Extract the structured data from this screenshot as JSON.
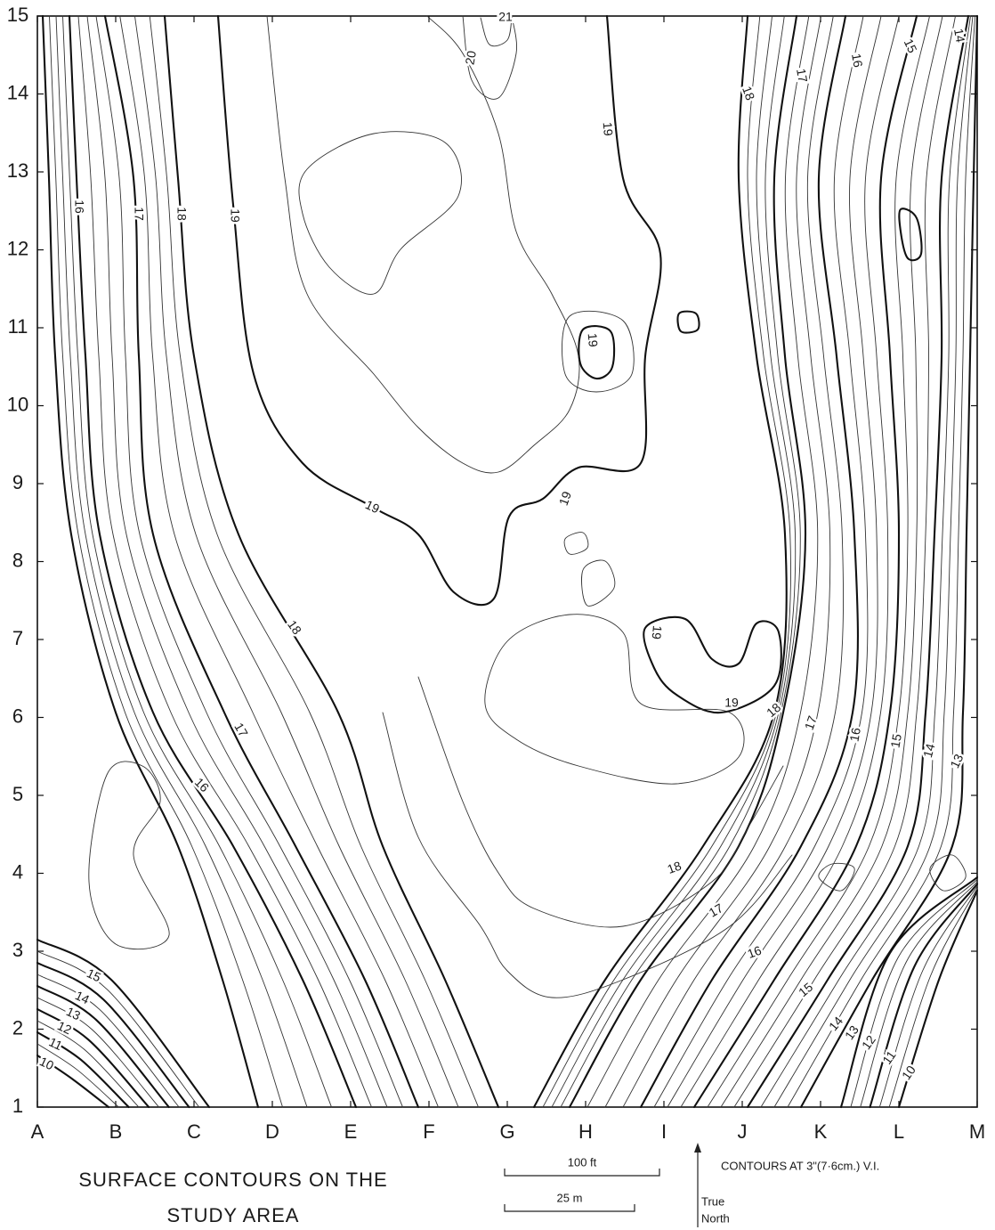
{
  "map": {
    "row_labels": [
      15,
      14,
      13,
      12,
      11,
      10,
      9,
      8,
      7,
      6,
      5,
      4,
      3,
      2,
      1
    ],
    "column_labels": [
      "A",
      "B",
      "C",
      "D",
      "E",
      "F",
      "G",
      "H",
      "I",
      "J",
      "K",
      "L",
      "M"
    ],
    "contour_labels": [
      20,
      21,
      18,
      17,
      16,
      15,
      14,
      19,
      16,
      17,
      18,
      19,
      19,
      19,
      19,
      18,
      19,
      19,
      18,
      17,
      16,
      15,
      14,
      13,
      17,
      16,
      18,
      17,
      16,
      15,
      14,
      13,
      12,
      11,
      10,
      15,
      14,
      13,
      12,
      11,
      10
    ],
    "title_lines": [
      "SURFACE CONTOURS ON THE",
      "STUDY AREA"
    ],
    "scale": {
      "feet": "100 ft",
      "meters": "25 m"
    },
    "contour_interval": "CONTOURS AT 3\"(7·6cm.) V.I.",
    "north": [
      "True",
      "North"
    ]
  }
}
